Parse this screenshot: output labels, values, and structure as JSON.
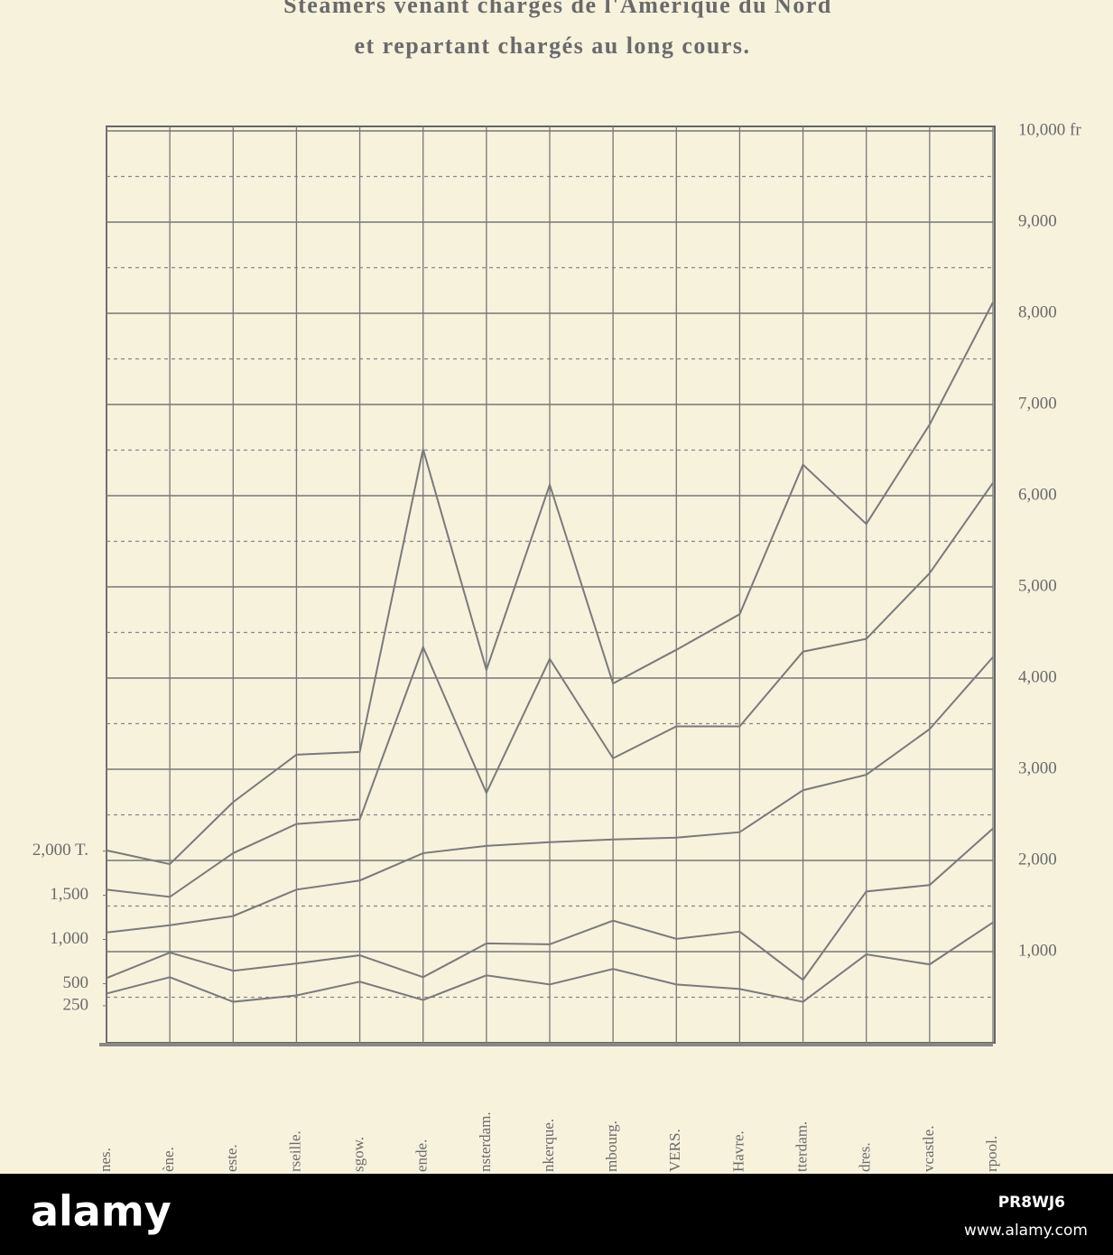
{
  "chart_data": {
    "type": "line",
    "title": "Steamers venant chargés de l'Amérique du Nord",
    "subtitle": "et repartant chargés au long cours.",
    "categories": [
      "nes.",
      "ène.",
      "este.",
      "rseille.",
      "sgow.",
      "ende.",
      "nsterdam.",
      "nkerque.",
      "mbourg.",
      "VERS.",
      "Havre.",
      "tterdam.",
      "dres.",
      "vcastle.",
      "rpool."
    ],
    "series": [
      {
        "color": "#7a7a7a",
        "values": [
          2110,
          1960,
          2640,
          3160,
          3190,
          6510,
          4090,
          6120,
          3940,
          4310,
          4700,
          6340,
          5690,
          6780,
          8120
        ]
      },
      {
        "color": "#7a7a7a",
        "values": [
          1680,
          1600,
          2080,
          2400,
          2450,
          4340,
          2740,
          4210,
          3120,
          3470,
          3470,
          4290,
          4430,
          5150,
          6140
        ]
      },
      {
        "color": "#7a7a7a",
        "values": [
          1210,
          1290,
          1390,
          1680,
          1780,
          2080,
          2160,
          2200,
          2230,
          2250,
          2310,
          2770,
          2940,
          3440,
          4230
        ]
      },
      {
        "color": "#7a7a7a",
        "values": [
          710,
          990,
          790,
          870,
          960,
          720,
          1090,
          1080,
          1340,
          1140,
          1220,
          690,
          1660,
          1730,
          2350
        ]
      },
      {
        "color": "#7a7a7a",
        "values": [
          540,
          720,
          450,
          520,
          670,
          470,
          740,
          640,
          810,
          640,
          590,
          450,
          970,
          860,
          1320
        ]
      }
    ],
    "ylim": [
      0,
      10000
    ],
    "yticks": [
      {
        "value": 1000,
        "label": "1,000"
      },
      {
        "value": 2000,
        "label": "2,000"
      },
      {
        "value": 3000,
        "label": "3,000"
      },
      {
        "value": 4000,
        "label": "4,000"
      },
      {
        "value": 5000,
        "label": "5,000"
      },
      {
        "value": 6000,
        "label": "6,000"
      },
      {
        "value": 7000,
        "label": "7,000"
      },
      {
        "value": 8000,
        "label": "8,000"
      },
      {
        "value": 9000,
        "label": "9,000"
      },
      {
        "value": 10000,
        "label": "10,000 fr"
      }
    ],
    "minor_yticks": [
      500,
      1500,
      2500,
      3500,
      4500,
      5500,
      6500,
      7500,
      8500,
      9500
    ],
    "y2lim": [
      -170,
      10150
    ],
    "y2ticks": [
      250,
      500,
      {
        "value": 1000,
        "label": "1,000"
      },
      {
        "value": 1500,
        "label": "1,500"
      },
      {
        "value": 2000,
        "label": "2,000 T."
      }
    ],
    "grid": true
  },
  "watermark": {
    "brand": "alamy",
    "id": "PR8WJ6",
    "url": "www.alamy.com"
  }
}
